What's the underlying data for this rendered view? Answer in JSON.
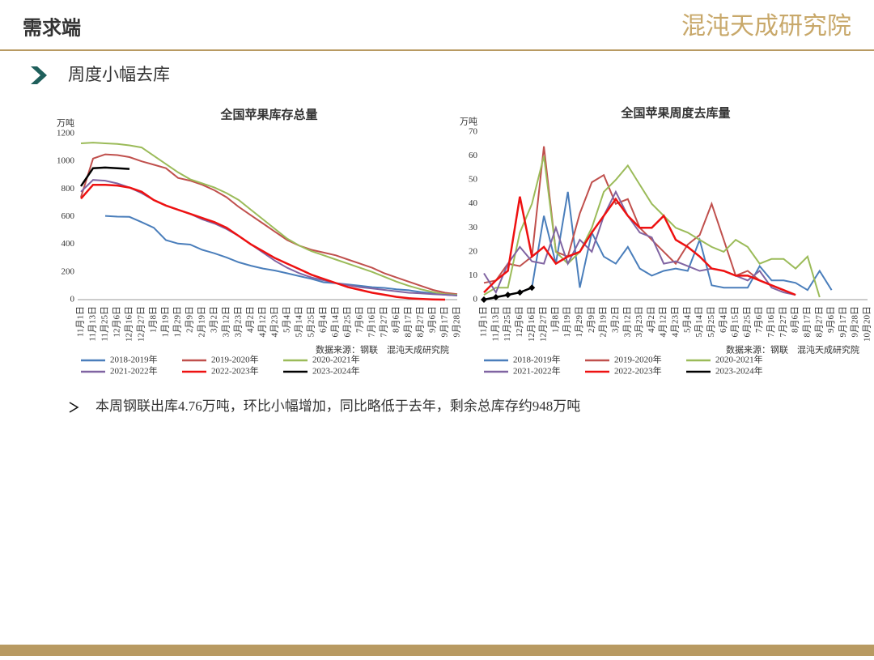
{
  "header": {
    "title": "需求端",
    "logo": "混沌天成研究院"
  },
  "section_title": "周度小幅去库",
  "bullet": "本周钢联出库4.76万吨，环比小幅增加，同比略低于去年，剩余总库存约948万吨",
  "chart_data": [
    {
      "type": "line",
      "title": "全国苹果库存总量",
      "y_unit": "万吨",
      "source": "数据来源：钢联　混沌天成研究院",
      "categories": [
        "11月1日",
        "11月13日",
        "11月25日",
        "12月6日",
        "12月16日",
        "12月27日",
        "1月8日",
        "1月19日",
        "1月29日",
        "2月9日",
        "2月19日",
        "3月2日",
        "3月12日",
        "3月23日",
        "4月2日",
        "4月12日",
        "4月23日",
        "5月4日",
        "5月14日",
        "5月25日",
        "6月4日",
        "6月14日",
        "6月25日",
        "7月6日",
        "7月16日",
        "7月27日",
        "8月6日",
        "8月17日",
        "8月27日",
        "9月6日",
        "9月17日",
        "9月28日"
      ],
      "ylim": [
        0,
        1200
      ],
      "yticks": [
        0,
        200,
        400,
        600,
        800,
        1000,
        1200
      ],
      "grid": false,
      "series": [
        {
          "name": "2018-2019年",
          "color": "#4a7ebb",
          "values": [
            null,
            null,
            605,
            600,
            598,
            560,
            520,
            430,
            405,
            398,
            360,
            335,
            305,
            270,
            245,
            225,
            210,
            190,
            170,
            150,
            125,
            118,
            110,
            100,
            90,
            85,
            75,
            68,
            55,
            45,
            35,
            30
          ]
        },
        {
          "name": "2019-2020年",
          "color": "#c0504d",
          "values": [
            740,
            1020,
            1050,
            1045,
            1030,
            1000,
            975,
            950,
            880,
            860,
            830,
            790,
            740,
            670,
            610,
            550,
            490,
            430,
            390,
            360,
            340,
            320,
            290,
            260,
            230,
            190,
            160,
            130,
            100,
            70,
            50,
            40
          ]
        },
        {
          "name": "2020-2021年",
          "color": "#9bbb59",
          "values": [
            1130,
            1135,
            1130,
            1125,
            1115,
            1100,
            1040,
            980,
            920,
            870,
            840,
            810,
            770,
            720,
            650,
            580,
            510,
            440,
            390,
            350,
            320,
            290,
            260,
            230,
            200,
            165,
            130,
            100,
            75,
            55,
            40,
            35
          ]
        },
        {
          "name": "2021-2022年",
          "color": "#8064a2",
          "values": [
            780,
            865,
            860,
            840,
            810,
            770,
            720,
            680,
            650,
            620,
            580,
            550,
            510,
            460,
            400,
            340,
            280,
            230,
            190,
            160,
            140,
            120,
            105,
            90,
            80,
            70,
            60,
            50,
            45,
            40,
            35,
            30
          ]
        },
        {
          "name": "2022-2023年",
          "color": "#ee1111",
          "values": [
            730,
            830,
            830,
            825,
            810,
            780,
            720,
            680,
            650,
            620,
            590,
            560,
            520,
            460,
            400,
            350,
            300,
            260,
            220,
            180,
            150,
            120,
            90,
            70,
            50,
            35,
            20,
            10,
            5,
            2,
            0,
            null
          ]
        },
        {
          "name": "2023-2024年",
          "color": "#000000",
          "values": [
            820,
            950,
            955,
            950,
            945,
            null,
            null,
            null,
            null,
            null,
            null,
            null,
            null,
            null,
            null,
            null,
            null,
            null,
            null,
            null,
            null,
            null,
            null,
            null,
            null,
            null,
            null,
            null,
            null,
            null,
            null,
            null
          ]
        }
      ]
    },
    {
      "type": "line",
      "title": "全国苹果周度去库量",
      "y_unit": "万吨",
      "source": "数据来源：钢联　混沌天成研究院",
      "categories": [
        "11月1日",
        "11月13日",
        "11月25日",
        "12月6日",
        "12月16日",
        "12月27日",
        "1月8日",
        "1月19日",
        "1月29日",
        "2月9日",
        "2月19日",
        "3月2日",
        "3月12日",
        "3月23日",
        "4月2日",
        "4月12日",
        "4月23日",
        "5月4日",
        "5月14日",
        "5月25日",
        "6月4日",
        "6月15日",
        "6月25日",
        "7月6日",
        "7月16日",
        "7月27日",
        "8月6日",
        "8月17日",
        "8月27日",
        "9月6日",
        "9月17日",
        "9月28日",
        "10月20日"
      ],
      "ylim": [
        0,
        70
      ],
      "yticks": [
        0,
        10,
        20,
        30,
        40,
        50,
        60,
        70
      ],
      "grid": false,
      "series": [
        {
          "name": "2018-2019年",
          "color": "#4a7ebb",
          "values": [
            null,
            null,
            2,
            3,
            5,
            35,
            15,
            45,
            5,
            28,
            18,
            15,
            22,
            13,
            10,
            12,
            13,
            12,
            25,
            6,
            5,
            5,
            5,
            14,
            8,
            8,
            7,
            4,
            12,
            4,
            null,
            null,
            null
          ]
        },
        {
          "name": "2019-2020年",
          "color": "#c0504d",
          "values": [
            7,
            8,
            15,
            14,
            18,
            64,
            20,
            18,
            36,
            49,
            52,
            40,
            42,
            30,
            25,
            20,
            15,
            23,
            27,
            40,
            25,
            10,
            12,
            8,
            null,
            null,
            null,
            null,
            null,
            null,
            null,
            null,
            null
          ]
        },
        {
          "name": "2020-2021年",
          "color": "#9bbb59",
          "values": [
            2,
            5,
            5,
            28,
            40,
            60,
            20,
            15,
            20,
            30,
            45,
            50,
            56,
            48,
            40,
            35,
            30,
            28,
            25,
            22,
            20,
            25,
            22,
            15,
            17,
            17,
            13,
            18,
            1,
            null,
            null,
            null,
            null
          ]
        },
        {
          "name": "2021-2022年",
          "color": "#8064a2",
          "values": [
            11,
            3,
            15,
            22,
            16,
            15,
            30,
            15,
            25,
            20,
            35,
            45,
            35,
            28,
            26,
            15,
            16,
            14,
            12,
            13,
            12,
            10,
            8,
            12,
            5,
            3,
            2,
            null,
            null,
            null,
            null,
            null,
            null
          ]
        },
        {
          "name": "2022-2023年",
          "color": "#ee1111",
          "values": [
            3,
            8,
            12,
            43,
            18,
            22,
            15,
            18,
            20,
            28,
            35,
            42,
            35,
            30,
            30,
            35,
            25,
            22,
            18,
            13,
            12,
            10,
            10,
            8,
            6,
            4,
            2,
            null,
            null,
            null,
            null,
            null,
            null
          ]
        },
        {
          "name": "2023-2024年",
          "color": "#000000",
          "marker": true,
          "values": [
            0,
            1,
            2,
            3,
            5,
            null,
            null,
            null,
            null,
            null,
            null,
            null,
            null,
            null,
            null,
            null,
            null,
            null,
            null,
            null,
            null,
            null,
            null,
            null,
            null,
            null,
            null,
            null,
            null,
            null,
            null,
            null,
            null
          ]
        }
      ]
    }
  ]
}
